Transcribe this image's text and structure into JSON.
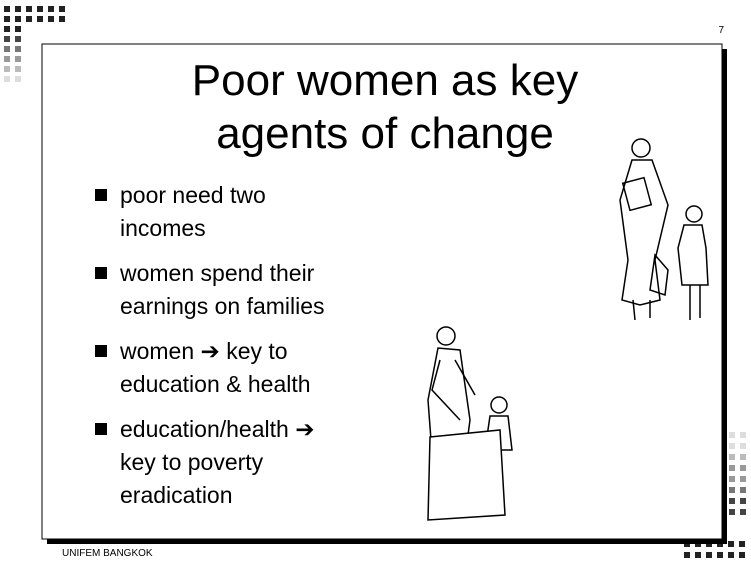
{
  "slide_number": "7",
  "title": {
    "lines": [
      "Poor women as key",
      "agents of change"
    ]
  },
  "bullets": [
    {
      "lines": [
        "poor need two",
        "incomes"
      ]
    },
    {
      "lines": [
        "women spend their",
        "earnings on families"
      ]
    },
    {
      "lines": [
        "women ➔  key to",
        "education & health"
      ]
    },
    {
      "lines": [
        "education/health ➔",
        "key to poverty",
        "eradication"
      ]
    }
  ],
  "footer": "UNIFEM BANGKOK"
}
